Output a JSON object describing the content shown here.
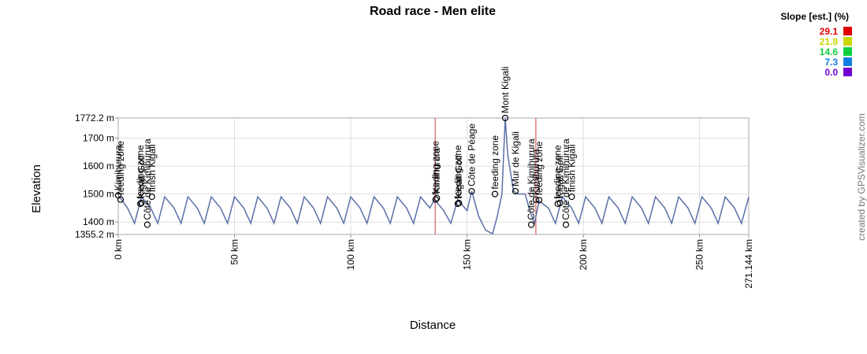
{
  "chart_data": {
    "type": "line",
    "title": "Road race - Men elite",
    "x_label": "Distance",
    "y_label": "Elevation",
    "credit": "created by GPSVisualizer.com",
    "xlim": [
      0,
      271.144
    ],
    "ylim": [
      1355.2,
      1772.2
    ],
    "xticks": [
      {
        "value": 0,
        "label": "0 km"
      },
      {
        "value": 50,
        "label": "50 km"
      },
      {
        "value": 100,
        "label": "100 km"
      },
      {
        "value": 150,
        "label": "150 km"
      },
      {
        "value": 200,
        "label": "200 km"
      },
      {
        "value": 250,
        "label": "250 km"
      },
      {
        "value": 271.144,
        "label": "271.144 km"
      }
    ],
    "yticks": [
      {
        "value": 1355.2,
        "label": "1355.2 m"
      },
      {
        "value": 1400,
        "label": "1400 m"
      },
      {
        "value": 1500,
        "label": "1500 m"
      },
      {
        "value": 1600,
        "label": "1600 m"
      },
      {
        "value": 1700,
        "label": "1700 m"
      },
      {
        "value": 1772.2,
        "label": "1772.2 m"
      }
    ],
    "grid": true,
    "x": [
      0,
      4,
      7,
      10,
      14,
      17,
      20,
      24,
      27,
      30,
      34,
      37,
      40,
      44,
      47,
      50,
      54,
      57,
      60,
      64,
      67,
      70,
      74,
      77,
      80,
      84,
      87,
      90,
      94,
      97,
      100,
      104,
      107,
      110,
      114,
      117,
      120,
      124,
      127,
      130,
      134,
      136,
      140,
      143,
      146,
      150,
      152,
      155,
      158,
      161,
      163,
      165,
      166.4,
      167.5,
      170,
      172,
      175,
      177,
      179,
      181,
      185,
      188,
      191,
      195,
      198,
      201,
      205,
      208,
      211,
      215,
      218,
      221,
      225,
      228,
      231,
      235,
      238,
      241,
      245,
      248,
      251,
      255,
      258,
      261,
      265,
      268,
      271.144
    ],
    "series": [
      {
        "name": "Elevation",
        "color": "#5a6fa8",
        "values": [
          1495,
          1450,
          1395,
          1490,
          1450,
          1395,
          1490,
          1450,
          1395,
          1490,
          1450,
          1395,
          1490,
          1450,
          1395,
          1490,
          1450,
          1395,
          1490,
          1450,
          1395,
          1490,
          1450,
          1395,
          1490,
          1450,
          1395,
          1490,
          1450,
          1395,
          1490,
          1450,
          1395,
          1490,
          1450,
          1395,
          1490,
          1450,
          1395,
          1490,
          1450,
          1480,
          1440,
          1395,
          1480,
          1440,
          1510,
          1420,
          1370,
          1358,
          1420,
          1500,
          1772.2,
          1640,
          1510,
          1500,
          1500,
          1440,
          1395,
          1475,
          1450,
          1395,
          1490,
          1450,
          1395,
          1490,
          1450,
          1395,
          1490,
          1450,
          1395,
          1490,
          1450,
          1395,
          1490,
          1450,
          1395,
          1490,
          1450,
          1395,
          1490,
          1450,
          1395,
          1490,
          1450,
          1395,
          1490
        ]
      }
    ],
    "reference_lines": [
      136.3,
      179.6
    ],
    "waypoints": [
      {
        "x": 0,
        "y": 1495,
        "label": "Kimihurura"
      },
      {
        "x": 1,
        "y": 1480,
        "label": "feeding zone"
      },
      {
        "x": 9.5,
        "y": 1465,
        "label": "feeding zone"
      },
      {
        "x": 10,
        "y": 1468,
        "label": "Kigali Golf"
      },
      {
        "x": 12.5,
        "y": 1390,
        "label": "Côte de Kimihurura"
      },
      {
        "x": 14.5,
        "y": 1490,
        "label": "finish Kigali"
      },
      {
        "x": 136.5,
        "y": 1480,
        "label": "feeding zone"
      },
      {
        "x": 137,
        "y": 1485,
        "label": "Kimihurura"
      },
      {
        "x": 146,
        "y": 1465,
        "label": "feeding zone"
      },
      {
        "x": 146.5,
        "y": 1468,
        "label": "Kigali Golf"
      },
      {
        "x": 152,
        "y": 1510,
        "label": "Côte de Péage"
      },
      {
        "x": 162,
        "y": 1500,
        "label": "feeding zone"
      },
      {
        "x": 166.4,
        "y": 1772.2,
        "label": "Mont Kigali"
      },
      {
        "x": 170.8,
        "y": 1510,
        "label": "Mur de Kigali"
      },
      {
        "x": 177.6,
        "y": 1390,
        "label": "Côte de Kimihurura"
      },
      {
        "x": 179.6,
        "y": 1480,
        "label": "Kimihurura"
      },
      {
        "x": 181,
        "y": 1478,
        "label": "feeding zone"
      },
      {
        "x": 189,
        "y": 1465,
        "label": "feeding zone"
      },
      {
        "x": 190,
        "y": 1468,
        "label": "Kigali Golf"
      },
      {
        "x": 192.5,
        "y": 1390,
        "label": "Côte de Kimihurura"
      },
      {
        "x": 195,
        "y": 1490,
        "label": "finish Kigali"
      }
    ],
    "legend": {
      "title": "Slope [est.] (%)",
      "items": [
        {
          "value": 29.1,
          "color": "#e00000"
        },
        {
          "value": 21.8,
          "color": "#c8d800"
        },
        {
          "value": 14.6,
          "color": "#10d040"
        },
        {
          "value": 7.3,
          "color": "#1080e0"
        },
        {
          "value": {
            "value": 0,
            "label": "0.0"
          },
          "color": "#7000d0"
        }
      ]
    }
  }
}
